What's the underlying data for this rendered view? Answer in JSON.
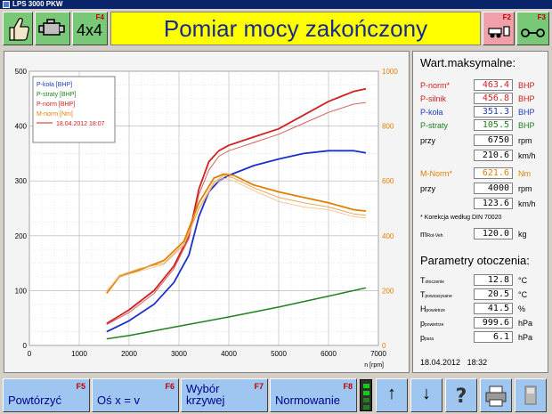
{
  "window": {
    "title": "LPS 3000 PKW"
  },
  "header": {
    "banner": "Pomiar mocy zakończony",
    "btn_4x4": "4x4",
    "btn_4x4_key": "F4",
    "btn_f2_key": "F2",
    "btn_f3_key": "F3",
    "icons": [
      "thumbs-up-icon",
      "engine-icon",
      "trailer-icon",
      "axle-icon"
    ]
  },
  "chart_data": {
    "type": "line",
    "xlabel": "n [rpm]",
    "xlim": [
      0,
      7000
    ],
    "ylim_left": [
      0,
      500
    ],
    "ylim_right": [
      0,
      1000
    ],
    "xticks": [
      "0",
      "1000",
      "2000",
      "3000",
      "4000",
      "5000",
      "6000",
      "7000"
    ],
    "yticks_left": [
      "0",
      "100",
      "200",
      "300",
      "400",
      "500"
    ],
    "yticks_right": [
      "0",
      "200",
      "400",
      "600",
      "800",
      "1000"
    ],
    "grid": true,
    "legend_position": "top-left",
    "legend": [
      {
        "label": "P-koła [BHP]",
        "color": "#2040c0"
      },
      {
        "label": "P-straty [BHP]",
        "color": "#208020"
      },
      {
        "label": "P-norm [BHP]",
        "color": "#d02020"
      },
      {
        "label": "M-norm [Nm]",
        "color": "#e08000"
      },
      {
        "label": "18.04.2012 18:07",
        "color": "#d02020",
        "line": true
      }
    ],
    "series": [
      {
        "name": "P-koła [BHP]",
        "axis": "left",
        "color": "#1a30c8",
        "width": 1.8,
        "x": [
          1550,
          2000,
          2500,
          2900,
          3200,
          3400,
          3600,
          3800,
          4000,
          4500,
          5000,
          5500,
          6000,
          6500,
          6750
        ],
        "values": [
          25,
          45,
          75,
          115,
          165,
          235,
          280,
          300,
          310,
          328,
          340,
          350,
          355,
          355,
          351
        ]
      },
      {
        "name": "P-straty [BHP]",
        "axis": "left",
        "color": "#208020",
        "width": 1.5,
        "x": [
          1550,
          2000,
          3000,
          4000,
          5000,
          6000,
          6750
        ],
        "values": [
          12,
          18,
          35,
          52,
          70,
          90,
          105
        ]
      },
      {
        "name": "P-norm [BHP]",
        "axis": "left",
        "color": "#d02020",
        "width": 1.8,
        "x": [
          1550,
          2000,
          2500,
          2900,
          3200,
          3400,
          3600,
          3800,
          4000,
          4500,
          5000,
          5500,
          6000,
          6500,
          6750
        ],
        "values": [
          40,
          65,
          100,
          145,
          200,
          285,
          335,
          355,
          365,
          380,
          395,
          420,
          445,
          463,
          468
        ]
      },
      {
        "name": "P-norm (18.04.2012 18:07)",
        "axis": "left",
        "color": "#d66060",
        "width": 1.0,
        "x": [
          1550,
          2000,
          2500,
          2900,
          3200,
          3400,
          3600,
          3800,
          4000,
          4500,
          5000,
          5500,
          6000,
          6500,
          6750
        ],
        "values": [
          38,
          60,
          95,
          140,
          195,
          275,
          320,
          345,
          355,
          370,
          385,
          405,
          425,
          440,
          443
        ]
      },
      {
        "name": "M-norm [Nm]",
        "axis": "right",
        "color": "#e08000",
        "width": 1.8,
        "x": [
          1550,
          1800,
          2200,
          2700,
          3100,
          3400,
          3700,
          3900,
          4100,
          4500,
          5000,
          5500,
          6000,
          6500,
          6750
        ],
        "values": [
          190,
          250,
          275,
          310,
          380,
          520,
          610,
          625,
          620,
          585,
          560,
          540,
          520,
          495,
          490
        ]
      },
      {
        "name": "M-norm (18.04.2012 18:07)",
        "axis": "right",
        "color": "#e8a860",
        "width": 1.0,
        "x": [
          1550,
          1800,
          2200,
          2700,
          3100,
          3400,
          3700,
          3900,
          4100,
          4500,
          5000,
          5500,
          6000,
          6500,
          6750
        ],
        "values": [
          195,
          255,
          280,
          300,
          370,
          500,
          595,
          620,
          610,
          575,
          540,
          520,
          505,
          480,
          475
        ]
      },
      {
        "name": "M-norm (18.04.2012 18:07) 2",
        "axis": "right",
        "color": "#f0c080",
        "width": 0.8,
        "x": [
          1550,
          1800,
          2200,
          2700,
          3100,
          3400,
          3700,
          3900,
          4100,
          4500,
          5000,
          5500,
          6000,
          6500,
          6750
        ],
        "values": [
          200,
          250,
          270,
          295,
          365,
          495,
          590,
          610,
          600,
          565,
          525,
          505,
          495,
          470,
          465
        ]
      }
    ]
  },
  "info": {
    "max_title": "Wart.maksymalne:",
    "rows": [
      {
        "label": "P-norm*",
        "value": "463.4",
        "unit": "BHP",
        "color": "#d02020"
      },
      {
        "label": "P-silnik",
        "value": "456.8",
        "unit": "BHP",
        "color": "#d02020"
      },
      {
        "label": "P-koła",
        "value": "351.3",
        "unit": "BHP",
        "color": "#2040c0"
      },
      {
        "label": "P-straty",
        "value": "105.5",
        "unit": "BHP",
        "color": "#208020"
      },
      {
        "label": "przy",
        "value": "6750",
        "unit": "rpm",
        "color": "#000000"
      },
      {
        "label": "",
        "value": "210.6",
        "unit": "km/h",
        "color": "#000000"
      },
      {
        "label": "M-Norm*",
        "value": "621.6",
        "unit": "Nm",
        "color": "#e08000"
      },
      {
        "label": "przy",
        "value": "4000",
        "unit": "rpm",
        "color": "#000000"
      },
      {
        "label": "",
        "value": "123.6",
        "unit": "km/h",
        "color": "#000000"
      }
    ],
    "correction_note": "* Korekcja według DIN 70020",
    "mass_label": "m",
    "mass_sub": "Rot-Veh",
    "mass_value": "120.0",
    "mass_unit": "kg",
    "env_title": "Parametry otoczenia:",
    "env": [
      {
        "label": "T",
        "sub": "otoczenie",
        "value": "12.8",
        "unit": "°C"
      },
      {
        "label": "T",
        "sub": "powzasysane",
        "value": "20.5",
        "unit": "°C"
      },
      {
        "label": "H",
        "sub": "powietrze",
        "value": "41.5",
        "unit": "%"
      },
      {
        "label": "p",
        "sub": "powietrze",
        "value": "999.6",
        "unit": "hPa"
      },
      {
        "label": "p",
        "sub": "para",
        "value": "6.1",
        "unit": "hPa"
      }
    ],
    "date": "18.04.2012",
    "time": "18:32"
  },
  "toolbar": {
    "buttons": [
      {
        "label": "Powtórzyć",
        "key": "F5"
      },
      {
        "label": "Oś x = v",
        "key": "F6"
      },
      {
        "label": "Wybór krzywej",
        "key": "F7"
      },
      {
        "label": "Normowanie",
        "key": "F8"
      }
    ],
    "nav": [
      "arrow-up-icon",
      "arrow-down-icon",
      "help-icon",
      "printer-icon",
      "disk-icon"
    ]
  }
}
